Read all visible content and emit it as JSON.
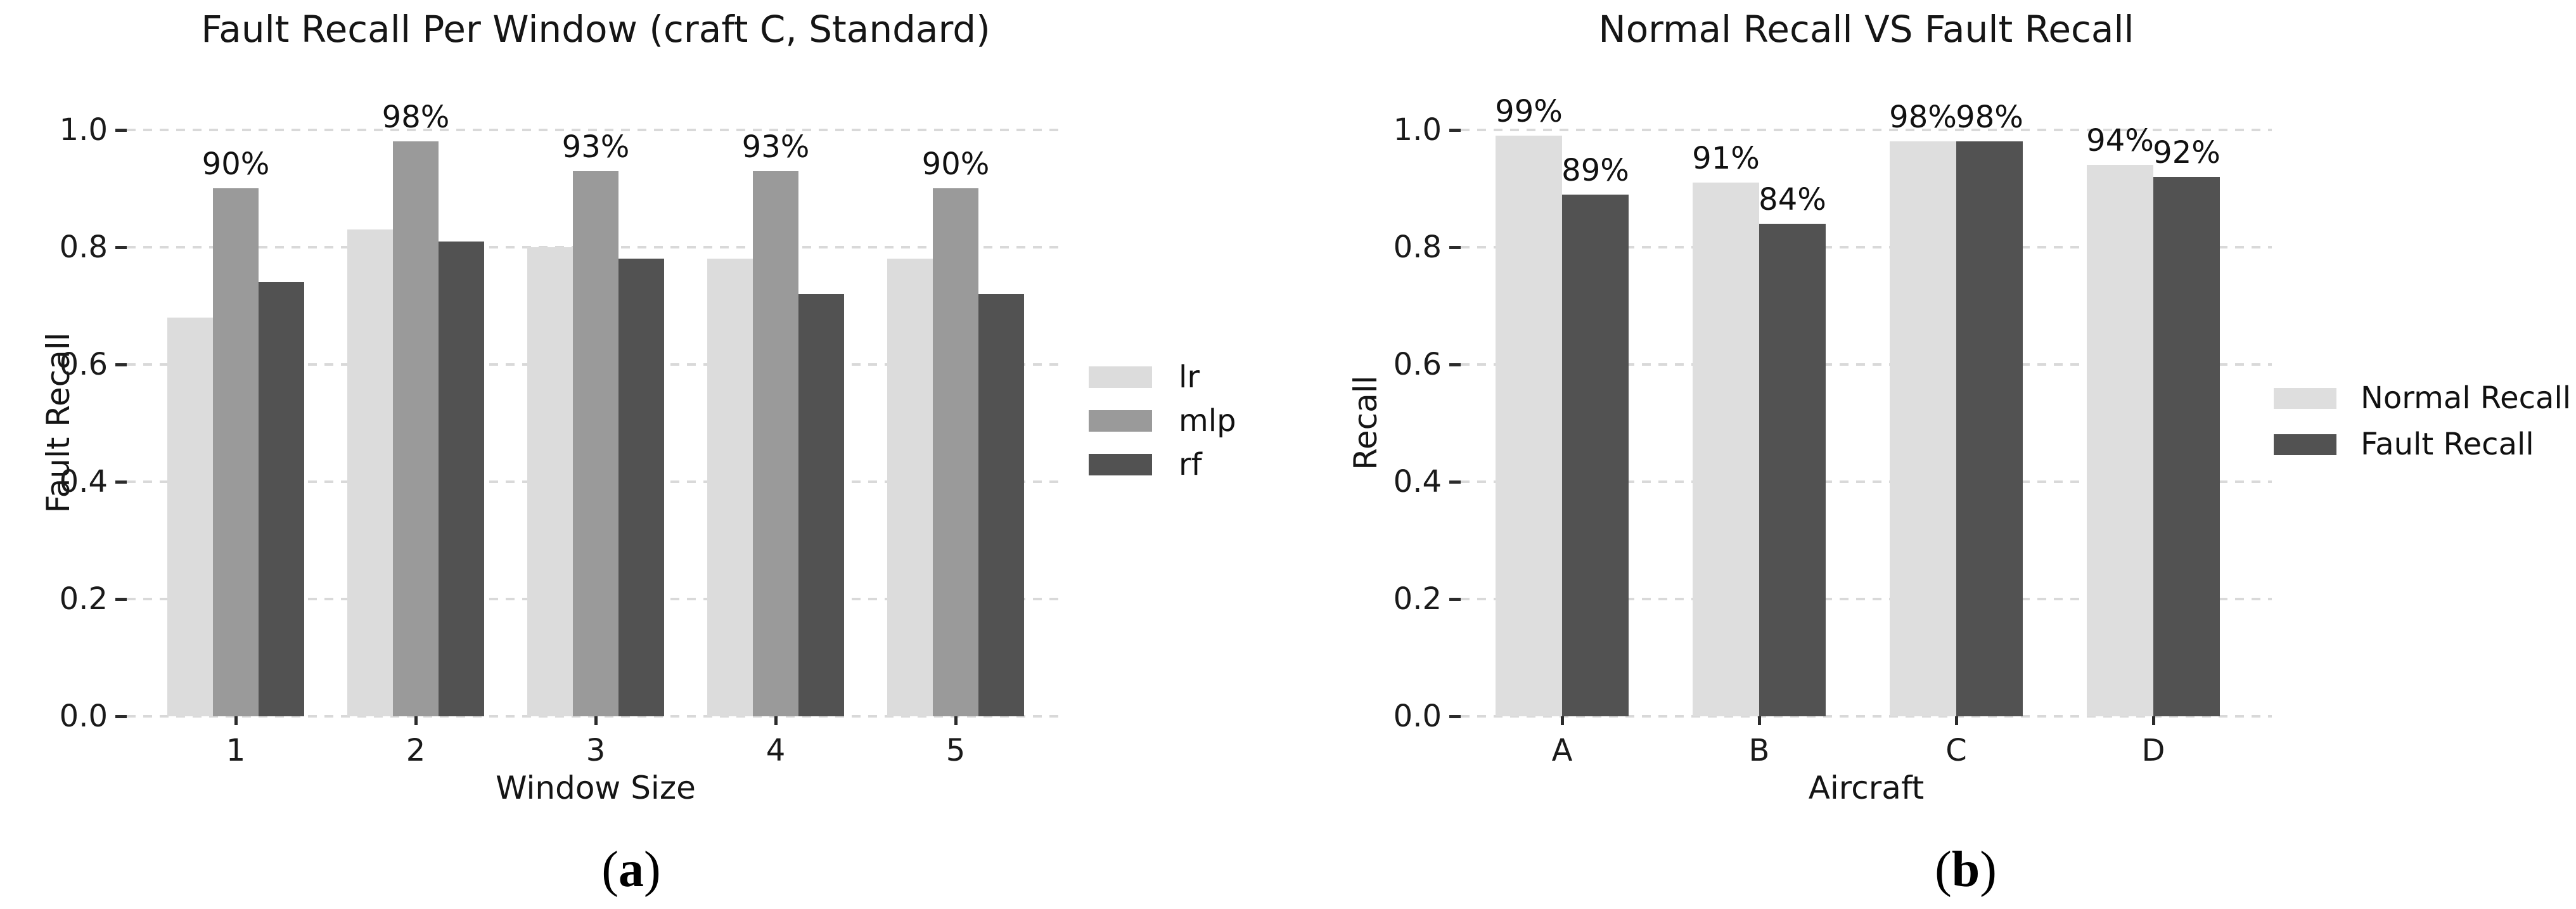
{
  "captions": {
    "a": {
      "open": "(",
      "letter": "a",
      "close": ")"
    },
    "b": {
      "open": "(",
      "letter": "b",
      "close": ")"
    }
  },
  "chart_data": [
    {
      "id": "a",
      "type": "bar",
      "title": "Fault Recall Per Window (craft C, Standard)",
      "xlabel": "Window Size",
      "ylabel": "Fault Recall",
      "ylim": [
        0.0,
        1.0
      ],
      "yticks": [
        0.0,
        0.2,
        0.4,
        0.6,
        0.8,
        1.0
      ],
      "ytick_labels": [
        "0.0",
        "0.2",
        "0.4",
        "0.6",
        "0.8",
        "1.0"
      ],
      "grid": "horizontal-dashed",
      "legend_position": "right-outside",
      "categories": [
        "1",
        "2",
        "3",
        "4",
        "5"
      ],
      "series": [
        {
          "name": "lr",
          "color": "#dcdcdc",
          "values": [
            0.68,
            0.83,
            0.8,
            0.78,
            0.78
          ],
          "labels": null
        },
        {
          "name": "mlp",
          "color": "#9a9a9a",
          "values": [
            0.9,
            0.98,
            0.93,
            0.93,
            0.9
          ],
          "labels": [
            "90%",
            "98%",
            "93%",
            "93%",
            "90%"
          ]
        },
        {
          "name": "rf",
          "color": "#525252",
          "values": [
            0.74,
            0.81,
            0.78,
            0.72,
            0.72
          ],
          "labels": null
        }
      ]
    },
    {
      "id": "b",
      "type": "bar",
      "title": "Normal Recall VS Fault Recall",
      "xlabel": "Aircraft",
      "ylabel": "Recall",
      "ylim": [
        0.0,
        1.0
      ],
      "yticks": [
        0.0,
        0.2,
        0.4,
        0.6,
        0.8,
        1.0
      ],
      "ytick_labels": [
        "0.0",
        "0.2",
        "0.4",
        "0.6",
        "0.8",
        "1.0"
      ],
      "grid": "horizontal-dashed",
      "legend_position": "right-outside",
      "categories": [
        "A",
        "B",
        "C",
        "D"
      ],
      "series": [
        {
          "name": "Normal Recall",
          "color": "#dedede",
          "values": [
            0.99,
            0.91,
            0.98,
            0.94
          ],
          "labels": [
            "99%",
            "91%",
            "98%",
            "94%"
          ]
        },
        {
          "name": "Fault Recall",
          "color": "#525252",
          "values": [
            0.89,
            0.84,
            0.98,
            0.92
          ],
          "labels": [
            "89%",
            "84%",
            "98%",
            "92%"
          ]
        }
      ]
    }
  ]
}
